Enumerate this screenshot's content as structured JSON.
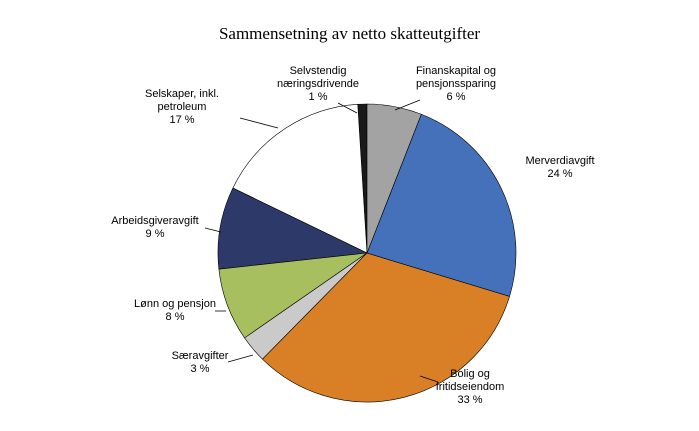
{
  "chart_data": {
    "type": "pie",
    "title": "Sammensetning av netto skatteutgifter",
    "categories": [
      "Finanskapital og pensjonssparing",
      "Merverdiavgift",
      "Bolig og fritidseiendom",
      "Særavgifter",
      "Lønn og pensjon",
      "Arbeidsgiveravgift",
      "Selskaper, inkl. petroleum",
      "Selvstendig næringsdrivende"
    ],
    "values": [
      6,
      24,
      33,
      3,
      8,
      9,
      17,
      1
    ],
    "value_labels": [
      "6 %",
      "24 %",
      "33 %",
      "3 %",
      "8 %",
      "9 %",
      "17 %",
      "1 %"
    ],
    "colors": [
      "#a3a3a3",
      "#4471b9",
      "#d97f26",
      "#cacaca",
      "#a7bf5f",
      "#2d3a69",
      "#ffffff",
      "#1a1a1a"
    ]
  }
}
